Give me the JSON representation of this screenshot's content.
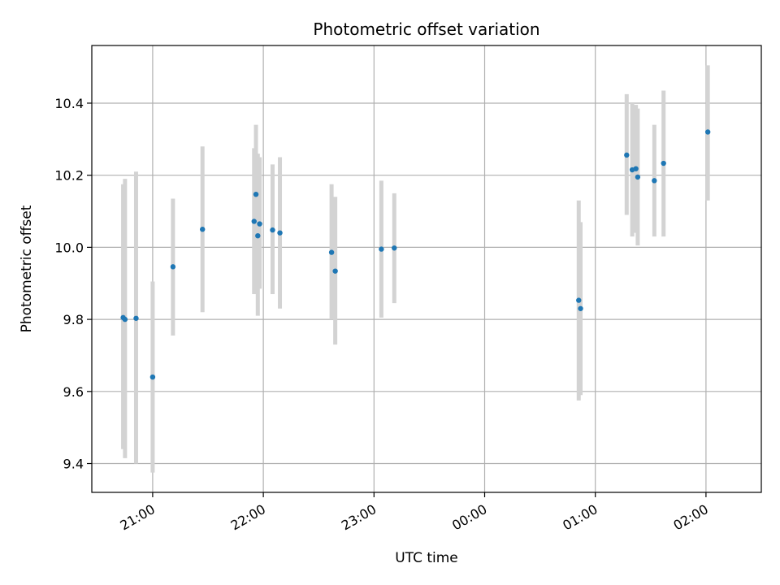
{
  "chart_data": {
    "type": "scatter",
    "title": "Photometric offset variation",
    "xlabel": "UTC time",
    "ylabel": "Photometric offset",
    "x_tick_labels": [
      "21:00",
      "22:00",
      "23:00",
      "00:00",
      "01:00",
      "02:00"
    ],
    "y_tick_labels": [
      "9.4",
      "9.6",
      "9.8",
      "10.0",
      "10.2",
      "10.4"
    ],
    "y_ticks": [
      9.4,
      9.6,
      9.8,
      10.0,
      10.2,
      10.4
    ],
    "xlim": [
      "20:27",
      "02:30"
    ],
    "ylim": [
      9.32,
      10.56
    ],
    "grid": true,
    "marker_color": "#1f77b4",
    "errorbar_color": "#d3d3d3",
    "points": [
      {
        "x": "20:44",
        "y": 9.805,
        "err_low": 9.44,
        "err_high": 10.175
      },
      {
        "x": "20:45",
        "y": 9.8,
        "err_low": 9.415,
        "err_high": 10.19
      },
      {
        "x": "20:51",
        "y": 9.803,
        "err_low": 9.4,
        "err_high": 10.21
      },
      {
        "x": "21:00",
        "y": 9.64,
        "err_low": 9.375,
        "err_high": 9.905
      },
      {
        "x": "21:11",
        "y": 9.946,
        "err_low": 9.755,
        "err_high": 10.135
      },
      {
        "x": "21:27",
        "y": 10.05,
        "err_low": 9.82,
        "err_high": 10.28
      },
      {
        "x": "21:55",
        "y": 10.072,
        "err_low": 9.87,
        "err_high": 10.275
      },
      {
        "x": "21:56",
        "y": 10.147,
        "err_low": 9.955,
        "err_high": 10.34
      },
      {
        "x": "21:57",
        "y": 10.032,
        "err_low": 9.81,
        "err_high": 10.26
      },
      {
        "x": "21:58",
        "y": 10.065,
        "err_low": 9.885,
        "err_high": 10.25
      },
      {
        "x": "22:05",
        "y": 10.048,
        "err_low": 9.87,
        "err_high": 10.23
      },
      {
        "x": "22:09",
        "y": 10.04,
        "err_low": 9.83,
        "err_high": 10.25
      },
      {
        "x": "22:37",
        "y": 9.986,
        "err_low": 9.8,
        "err_high": 10.175
      },
      {
        "x": "22:39",
        "y": 9.934,
        "err_low": 9.73,
        "err_high": 10.14
      },
      {
        "x": "23:04",
        "y": 9.995,
        "err_low": 9.805,
        "err_high": 10.185
      },
      {
        "x": "23:11",
        "y": 9.998,
        "err_low": 9.845,
        "err_high": 10.15
      },
      {
        "x": "00:51",
        "y": 9.853,
        "err_low": 9.575,
        "err_high": 10.13
      },
      {
        "x": "00:52",
        "y": 9.83,
        "err_low": 9.59,
        "err_high": 10.07
      },
      {
        "x": "01:17",
        "y": 10.256,
        "err_low": 10.09,
        "err_high": 10.425
      },
      {
        "x": "01:20",
        "y": 10.215,
        "err_low": 10.03,
        "err_high": 10.4
      },
      {
        "x": "01:22",
        "y": 10.218,
        "err_low": 10.04,
        "err_high": 10.395
      },
      {
        "x": "01:23",
        "y": 10.195,
        "err_low": 10.005,
        "err_high": 10.385
      },
      {
        "x": "01:32",
        "y": 10.185,
        "err_low": 10.03,
        "err_high": 10.34
      },
      {
        "x": "01:37",
        "y": 10.233,
        "err_low": 10.03,
        "err_high": 10.435
      },
      {
        "x": "02:01",
        "y": 10.32,
        "err_low": 10.13,
        "err_high": 10.505
      }
    ]
  }
}
